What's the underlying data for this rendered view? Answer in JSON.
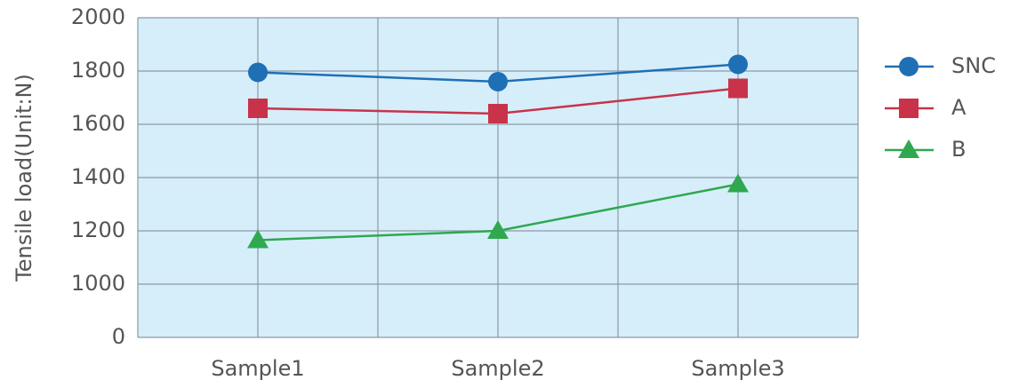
{
  "chart_data": {
    "type": "line",
    "y_label": "Tensile load(Unit:N)",
    "categories": [
      "Sample1",
      "Sample2",
      "Sample3"
    ],
    "series": [
      {
        "name": "SNC",
        "color": "#1f6fb5",
        "marker": "circle",
        "values": [
          1795,
          1760,
          1825
        ]
      },
      {
        "name": "A",
        "color": "#c8334a",
        "marker": "square",
        "values": [
          1660,
          1640,
          1735
        ]
      },
      {
        "name": "B",
        "color": "#2fa84f",
        "marker": "triangle",
        "values": [
          1165,
          1200,
          1375
        ]
      }
    ],
    "ylim": [
      0,
      2000
    ],
    "yticks": [
      0,
      1000,
      1200,
      1400,
      1600,
      1800,
      2000
    ],
    "grid": true,
    "legend": "right"
  }
}
